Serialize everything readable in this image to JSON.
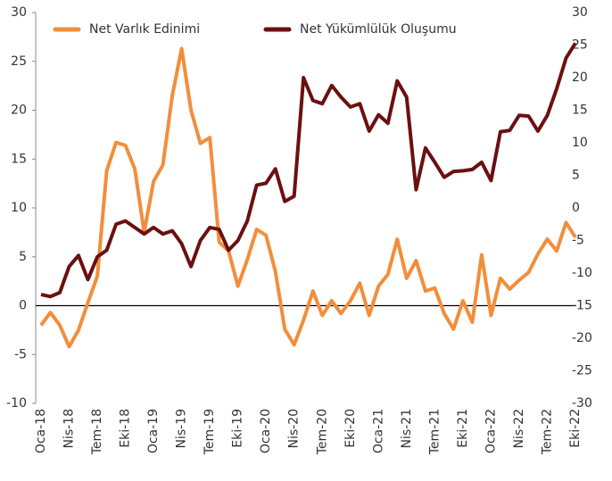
{
  "chart_data": {
    "type": "line",
    "categories": [
      "Oca-18",
      null,
      null,
      "Nis-18",
      null,
      null,
      "Tem-18",
      null,
      null,
      "Eki-18",
      null,
      null,
      "Oca-19",
      null,
      null,
      "Nis-19",
      null,
      null,
      "Tem-19",
      null,
      null,
      "Eki-19",
      null,
      null,
      "Oca-20",
      null,
      null,
      "Nis-20",
      null,
      null,
      "Tem-20",
      null,
      null,
      "Eki-20",
      null,
      null,
      "Oca-21",
      null,
      null,
      "Nis-21",
      null,
      null,
      "Tem-21",
      null,
      null,
      "Eki-21",
      null,
      null,
      "Oca-22",
      null,
      null,
      "Nis-22",
      null,
      null,
      "Tem-22",
      null,
      null,
      "Eki-22"
    ],
    "series": [
      {
        "name": "Net Varlık Edinimi",
        "color": "#f28e3b",
        "axis": "y",
        "values": [
          -2,
          -0.7,
          -2,
          -4.2,
          -2.5,
          0.3,
          3,
          13.8,
          16.7,
          16.4,
          14,
          7.5,
          12.7,
          14.4,
          21.5,
          26.3,
          20,
          16.6,
          17.2,
          6.5,
          5.6,
          2,
          4.7,
          7.8,
          7.2,
          3.5,
          -2.4,
          -4,
          -1.5,
          1.5,
          -1,
          0.5,
          -0.8,
          0.5,
          2.3,
          -1,
          2,
          3.2,
          6.8,
          2.8,
          4.6,
          1.5,
          1.8,
          -0.8,
          -2.4,
          0.5,
          -1.7,
          5.2,
          -1,
          2.8,
          1.7,
          2.6,
          3.4,
          5.3,
          6.8,
          5.6,
          8.5,
          7
        ]
      },
      {
        "name": "Net Yükümlülük Oluşumu",
        "color": "#6b1010",
        "axis": "y2",
        "values": [
          -13.3,
          -13.6,
          -13,
          -9,
          -7.3,
          -11,
          -7.5,
          -6.5,
          -2.5,
          -2,
          -3,
          -4,
          -3,
          -4,
          -3.5,
          -5.5,
          -9,
          -5,
          -3,
          -3.3,
          -6.5,
          -5,
          -2,
          3.5,
          3.8,
          6,
          1,
          1.8,
          20,
          16.5,
          16,
          18.8,
          17,
          15.5,
          16,
          11.8,
          14.3,
          13,
          19.5,
          17,
          2.8,
          9.2,
          7,
          4.7,
          5.6,
          5.7,
          5.9,
          7,
          4.2,
          11.7,
          11.9,
          14.2,
          14.1,
          11.8,
          14.2,
          18.3,
          23,
          25.3
        ]
      }
    ],
    "ylim": [
      -10,
      30
    ],
    "yticks": [
      -10,
      -5,
      0,
      5,
      10,
      15,
      20,
      25,
      30
    ],
    "y2lim": [
      -30,
      30
    ],
    "y2ticks": [
      -30,
      -25,
      -20,
      -15,
      -10,
      -5,
      0,
      5,
      10,
      15,
      20,
      25,
      30
    ],
    "legend": "top"
  }
}
